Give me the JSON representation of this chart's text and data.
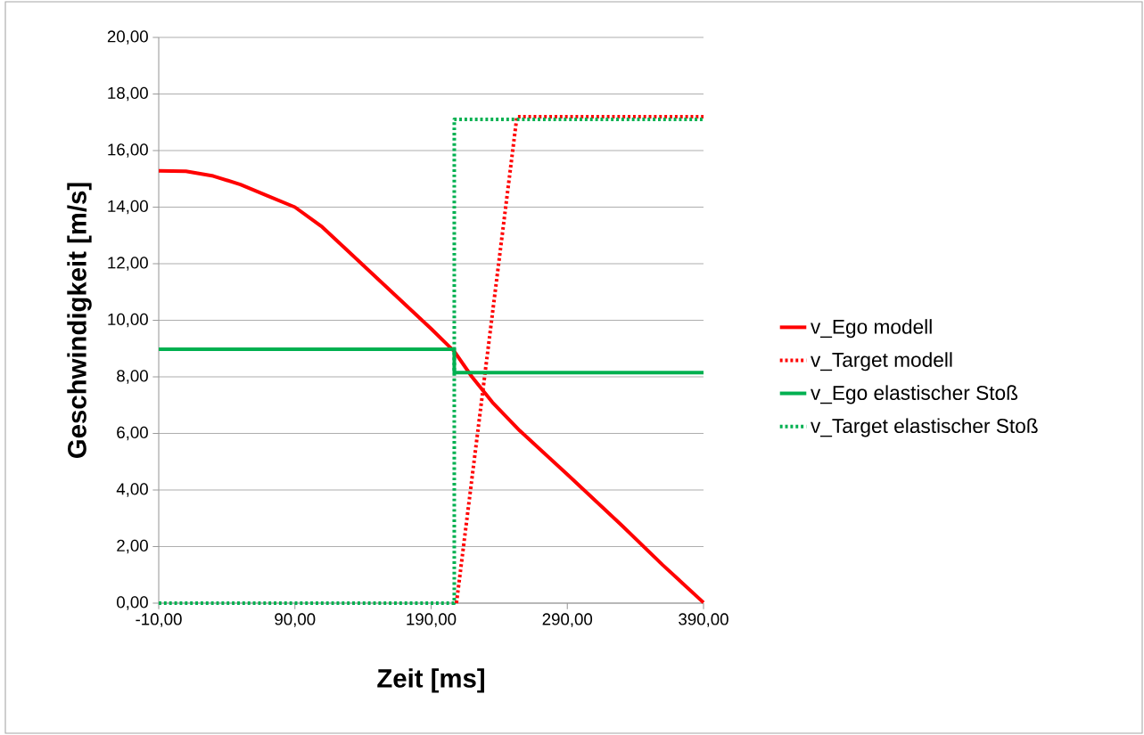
{
  "chart_data": {
    "type": "line",
    "xlabel": "Zeit [ms]",
    "ylabel": "Geschwindigkeit [m/s]",
    "xlim": [
      -10,
      390
    ],
    "ylim": [
      0,
      20
    ],
    "xticks": [
      {
        "value": -10,
        "label": "-10,00"
      },
      {
        "value": 90,
        "label": "90,00"
      },
      {
        "value": 190,
        "label": "190,00"
      },
      {
        "value": 290,
        "label": "290,00"
      },
      {
        "value": 390,
        "label": "390,00"
      }
    ],
    "yticks": [
      {
        "value": 0,
        "label": "0,00"
      },
      {
        "value": 2,
        "label": "2,00"
      },
      {
        "value": 4,
        "label": "4,00"
      },
      {
        "value": 6,
        "label": "6,00"
      },
      {
        "value": 8,
        "label": "8,00"
      },
      {
        "value": 10,
        "label": "10,00"
      },
      {
        "value": 12,
        "label": "12,00"
      },
      {
        "value": 14,
        "label": "14,00"
      },
      {
        "value": 16,
        "label": "16,00"
      },
      {
        "value": 18,
        "label": "18,00"
      },
      {
        "value": 20,
        "label": "20,00"
      }
    ],
    "grid": "y",
    "legend": "right",
    "marker": "none",
    "series": [
      {
        "name": "v_Ego modell",
        "color": "#ff0000",
        "line_style": "solid",
        "x": [
          -10,
          10,
          30,
          50,
          70,
          90,
          110,
          130,
          150,
          170,
          190,
          207,
          220,
          235,
          255,
          290,
          330,
          360,
          390
        ],
        "values": [
          15.28,
          15.27,
          15.1,
          14.8,
          14.4,
          14.0,
          13.3,
          12.4,
          11.5,
          10.6,
          9.7,
          8.9,
          8.0,
          7.1,
          6.1,
          4.55,
          2.75,
          1.35,
          0.02
        ]
      },
      {
        "name": "v_Target modell",
        "color": "#ff0000",
        "line_style": "dotted",
        "x": [
          208.6,
          253,
          390
        ],
        "values": [
          0,
          17.2,
          17.2
        ]
      },
      {
        "name": "v_Ego elastischer Stoß",
        "color": "#00b050",
        "line_style": "solid",
        "x": [
          -10,
          207,
          207,
          390
        ],
        "values": [
          8.98,
          8.98,
          8.15,
          8.15
        ]
      },
      {
        "name": "v_Target elastischer Stoß",
        "color": "#00b050",
        "line_style": "dotted",
        "x": [
          -10,
          207,
          207,
          390
        ],
        "values": [
          0,
          0,
          17.1,
          17.1
        ]
      }
    ]
  }
}
